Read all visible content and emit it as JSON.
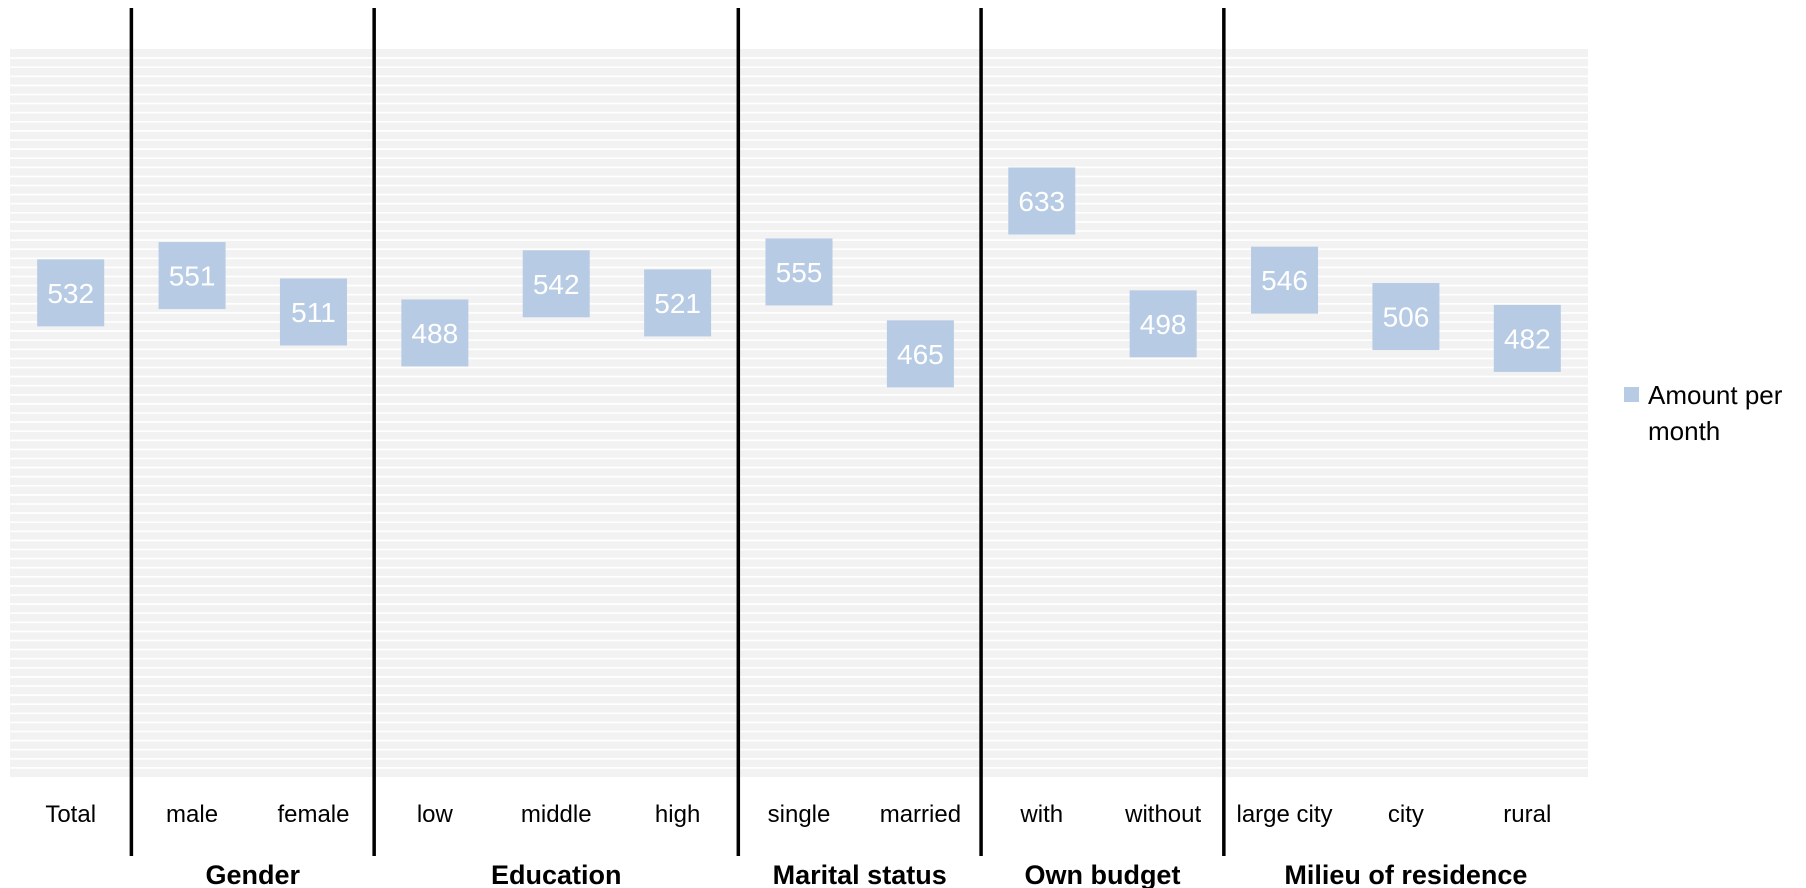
{
  "chart_data": {
    "type": "scatter",
    "marker": "square",
    "categories": [
      "Total",
      "male",
      "female",
      "low",
      "middle",
      "high",
      "single",
      "married",
      "with",
      "without",
      "large city",
      "city",
      "rural"
    ],
    "series": [
      {
        "name": "Amount per month",
        "values": [
          532,
          551,
          511,
          488,
          542,
          521,
          555,
          465,
          633,
          498,
          546,
          506,
          482
        ]
      }
    ],
    "groups": [
      {
        "label": "Gender",
        "categories": [
          "male",
          "female"
        ]
      },
      {
        "label": "Education",
        "categories": [
          "low",
          "middle",
          "high"
        ]
      },
      {
        "label": "Marital status",
        "categories": [
          "single",
          "married"
        ]
      },
      {
        "label": "Own budget",
        "categories": [
          "with",
          "without"
        ]
      },
      {
        "label": "Milieu of residence",
        "categories": [
          "large city",
          "city",
          "rural"
        ]
      }
    ],
    "legend": {
      "position": "right",
      "label": "Amount per month"
    },
    "ylim": [
      0,
      800
    ],
    "grid": true,
    "y_axis_visible": false,
    "colors": {
      "marker": "#b7cbe4",
      "plot_background": "#f2f2f2",
      "gridline": "#ffffff",
      "separator": "#000000",
      "value_text": "#ffffff"
    }
  }
}
